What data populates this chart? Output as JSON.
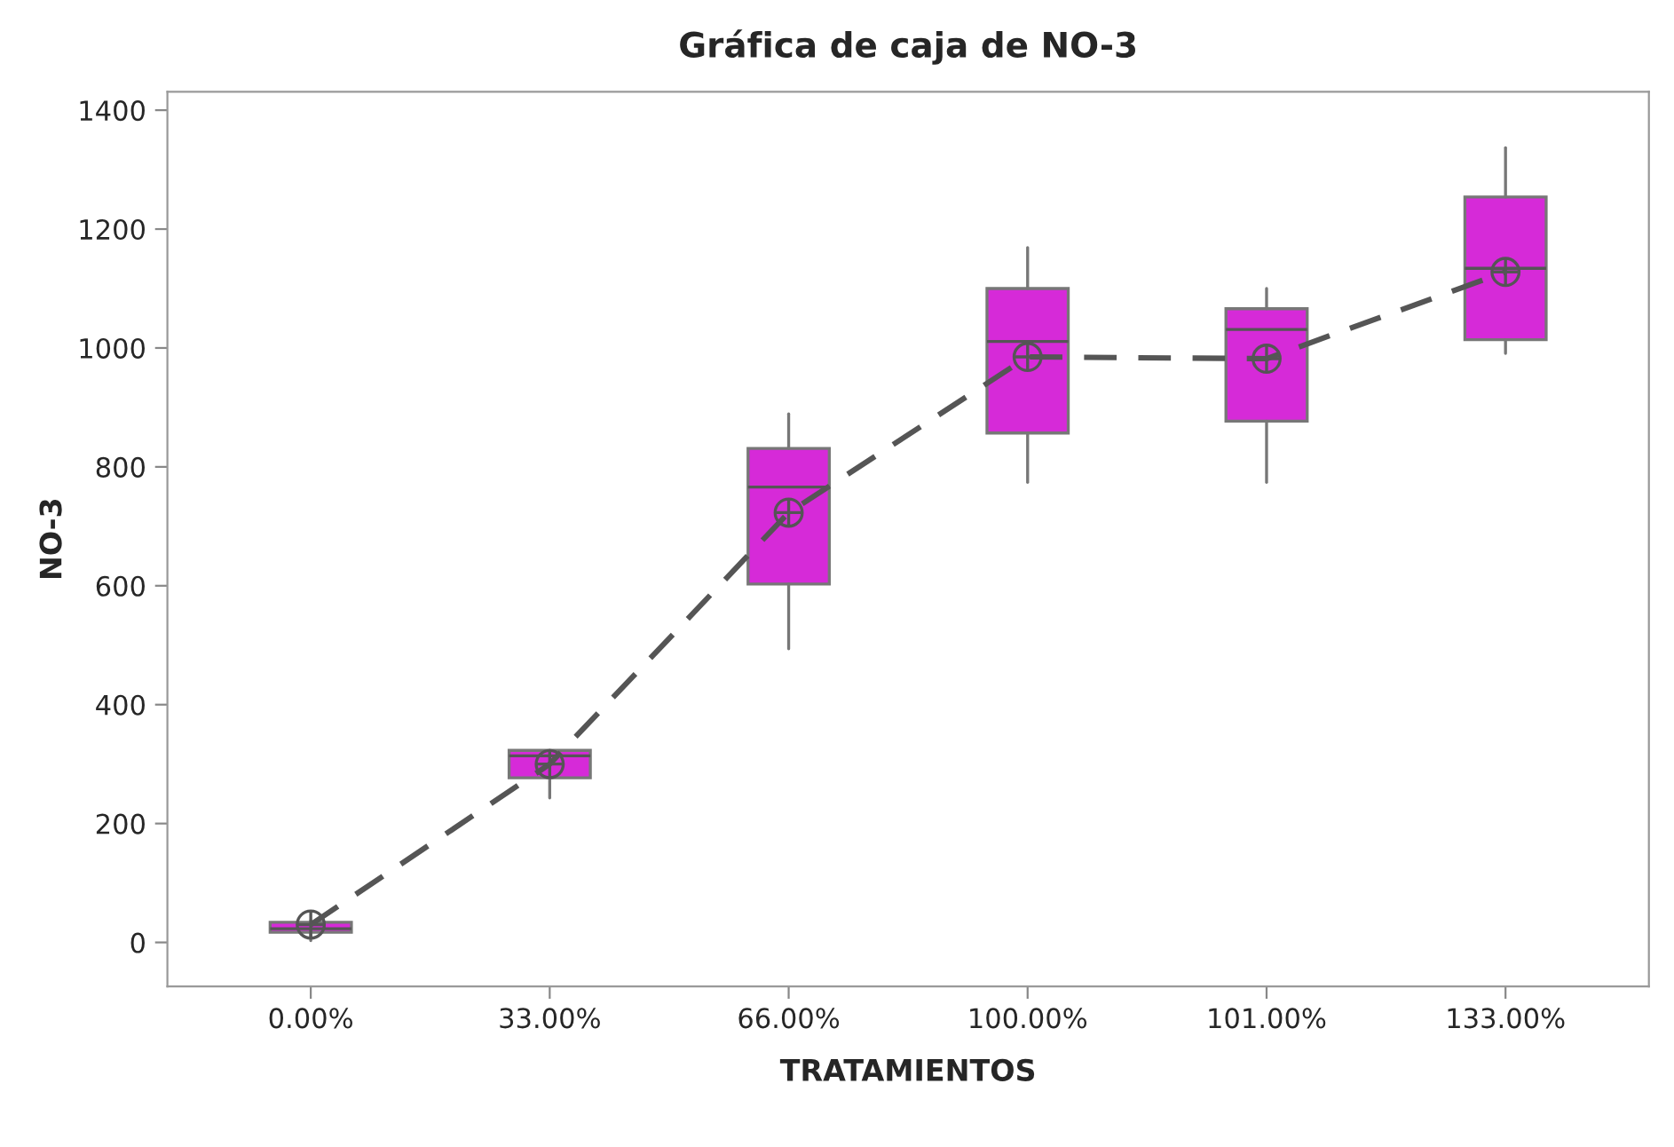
{
  "chart_data": {
    "type": "box",
    "title": "Gráfica de caja de NO-3",
    "xlabel": "TRATAMIENTOS",
    "ylabel": "NO-3",
    "categories": [
      "0.00%",
      "33.00%",
      "66.00%",
      "100.00%",
      "101.00%",
      "133.00%"
    ],
    "color": "#d62ad8",
    "boxes": [
      {
        "low": 3,
        "q1": 17,
        "median": 23,
        "q3": 34,
        "high": 37
      },
      {
        "low": 243,
        "q1": 277,
        "median": 314,
        "q3": 323,
        "high": 323
      },
      {
        "low": 494,
        "q1": 603,
        "median": 766,
        "q3": 831,
        "high": 889
      },
      {
        "low": 774,
        "q1": 857,
        "median": 1011,
        "q3": 1100,
        "high": 1169
      },
      {
        "low": 774,
        "q1": 877,
        "median": 1031,
        "q3": 1066,
        "high": 1100
      },
      {
        "low": 991,
        "q1": 1014,
        "median": 1134,
        "q3": 1254,
        "high": 1337
      }
    ],
    "series": [
      {
        "type": "line",
        "color": "#555555",
        "line_style": "dashed",
        "marker": "circle",
        "values": [
          30,
          300,
          723,
          985,
          982,
          1128
        ]
      }
    ],
    "ylim": [
      -74,
      1431
    ],
    "yticks": [
      0,
      200,
      400,
      600,
      800,
      1000,
      1200,
      1400
    ],
    "grid": false,
    "legend": false
  }
}
